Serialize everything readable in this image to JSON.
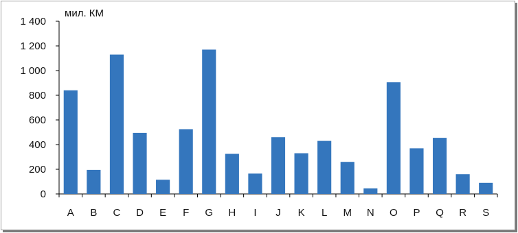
{
  "chart_data": {
    "type": "bar",
    "unit_label": "мил. КМ",
    "categories": [
      "A",
      "B",
      "C",
      "D",
      "E",
      "F",
      "G",
      "H",
      "I",
      "J",
      "K",
      "L",
      "M",
      "N",
      "O",
      "P",
      "Q",
      "R",
      "S"
    ],
    "values": [
      840,
      195,
      1130,
      495,
      115,
      525,
      1170,
      325,
      165,
      460,
      330,
      430,
      260,
      45,
      905,
      370,
      455,
      160,
      90
    ],
    "ylim": [
      0,
      1400
    ],
    "yticks": [
      0,
      200,
      400,
      600,
      800,
      1000,
      1200,
      1400
    ],
    "ytick_labels": [
      "0",
      "200",
      "400",
      "600",
      "800",
      "1 000",
      "1 200",
      "1 400"
    ],
    "bar_color": "#3476bd",
    "grid": false,
    "legend": "none",
    "title": "",
    "xlabel": "",
    "ylabel": ""
  }
}
